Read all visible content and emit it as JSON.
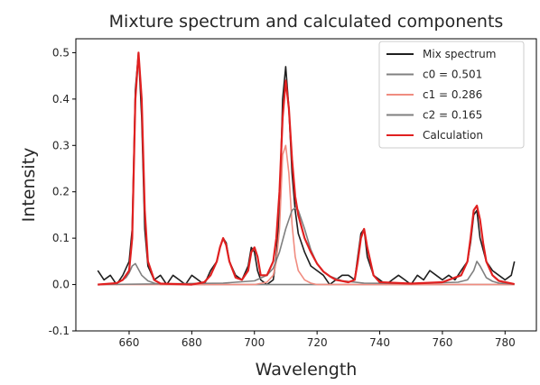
{
  "chart_data": {
    "type": "line",
    "title": "Mixture spectrum and calculated components",
    "xlabel": "Wavelength",
    "ylabel": "Intensity",
    "xlim": [
      643,
      790
    ],
    "ylim": [
      -0.1,
      0.53
    ],
    "xticks": [
      660,
      680,
      700,
      720,
      740,
      760,
      780
    ],
    "yticks": [
      -0.1,
      0.0,
      0.1,
      0.2,
      0.3,
      0.4,
      0.5
    ],
    "legend": {
      "position": "top-right"
    },
    "grid": false,
    "series": [
      {
        "name": "Mix spectrum",
        "color": "#1f1f1f",
        "x": [
          650,
          652,
          654,
          656,
          658,
          660,
          661,
          662,
          663,
          664,
          665,
          666,
          668,
          670,
          672,
          674,
          676,
          678,
          680,
          682,
          684,
          686,
          688,
          689,
          690,
          691,
          692,
          694,
          696,
          698,
          699,
          700,
          701,
          702,
          704,
          706,
          707,
          708,
          709,
          710,
          711,
          712,
          713,
          714,
          716,
          718,
          720,
          722,
          724,
          726,
          728,
          730,
          732,
          733,
          734,
          735,
          736,
          738,
          740,
          742,
          744,
          746,
          748,
          750,
          752,
          754,
          756,
          758,
          760,
          762,
          764,
          766,
          768,
          769,
          770,
          771,
          772,
          774,
          776,
          778,
          780,
          782,
          783
        ],
        "y": [
          0.03,
          0.01,
          0.02,
          0.0,
          0.02,
          0.05,
          0.12,
          0.42,
          0.5,
          0.36,
          0.12,
          0.04,
          0.01,
          0.02,
          0.0,
          0.02,
          0.01,
          0.0,
          0.02,
          0.01,
          0.0,
          0.03,
          0.05,
          0.08,
          0.1,
          0.09,
          0.05,
          0.02,
          0.01,
          0.04,
          0.08,
          0.07,
          0.03,
          0.01,
          0.0,
          0.01,
          0.06,
          0.16,
          0.4,
          0.47,
          0.38,
          0.24,
          0.16,
          0.11,
          0.07,
          0.04,
          0.03,
          0.02,
          0.0,
          0.01,
          0.02,
          0.02,
          0.01,
          0.06,
          0.11,
          0.12,
          0.06,
          0.02,
          0.01,
          0.0,
          0.01,
          0.02,
          0.01,
          0.0,
          0.02,
          0.01,
          0.03,
          0.02,
          0.01,
          0.02,
          0.01,
          0.03,
          0.05,
          0.09,
          0.15,
          0.16,
          0.1,
          0.05,
          0.03,
          0.02,
          0.01,
          0.02,
          0.05
        ]
      },
      {
        "name": "c0 = 0.501",
        "color": "#808080",
        "x": [
          650,
          656,
          658,
          659,
          660,
          661,
          662,
          664,
          666,
          668,
          670,
          672,
          674,
          676,
          680,
          690,
          700,
          710,
          720,
          740,
          760,
          783
        ],
        "y": [
          0.0,
          0.003,
          0.01,
          0.015,
          0.025,
          0.04,
          0.045,
          0.02,
          0.008,
          0.003,
          0.0,
          0.0,
          0.0,
          0.0,
          0.0,
          0.0,
          0.0,
          0.0,
          0.0,
          0.0,
          0.0,
          0.0
        ]
      },
      {
        "name": "c1 = 0.286",
        "color": "#f08c80",
        "x": [
          650,
          700,
          704,
          706,
          707,
          708,
          709,
          710,
          711,
          712,
          713,
          714,
          716,
          718,
          720,
          740,
          783
        ],
        "y": [
          0.0,
          0.0,
          0.005,
          0.02,
          0.05,
          0.12,
          0.28,
          0.3,
          0.24,
          0.13,
          0.06,
          0.03,
          0.01,
          0.003,
          0.0,
          0.0,
          0.0
        ]
      },
      {
        "name": "c2 = 0.165",
        "color": "#7f7f7f",
        "x": [
          650,
          690,
          700,
          704,
          706,
          708,
          710,
          712,
          713,
          714,
          716,
          718,
          720,
          722,
          724,
          728,
          735,
          750,
          765,
          768,
          770,
          771,
          772,
          774,
          776,
          778,
          783
        ],
        "y": [
          0.0,
          0.003,
          0.008,
          0.02,
          0.035,
          0.07,
          0.12,
          0.16,
          0.165,
          0.16,
          0.12,
          0.075,
          0.045,
          0.028,
          0.018,
          0.008,
          0.003,
          0.002,
          0.005,
          0.01,
          0.03,
          0.05,
          0.04,
          0.015,
          0.007,
          0.003,
          0.001
        ]
      },
      {
        "name": "Calculation",
        "color": "#e02020",
        "x": [
          650,
          656,
          658,
          660,
          661,
          662,
          663,
          664,
          665,
          666,
          668,
          670,
          680,
          684,
          686,
          688,
          689,
          690,
          691,
          692,
          694,
          696,
          698,
          699,
          700,
          701,
          702,
          704,
          706,
          707,
          708,
          709,
          710,
          711,
          712,
          713,
          714,
          716,
          718,
          720,
          722,
          724,
          726,
          730,
          732,
          733,
          734,
          735,
          736,
          738,
          740,
          750,
          760,
          766,
          768,
          769,
          770,
          771,
          772,
          773,
          774,
          776,
          778,
          783
        ],
        "y": [
          0.0,
          0.003,
          0.01,
          0.03,
          0.1,
          0.4,
          0.5,
          0.4,
          0.16,
          0.05,
          0.01,
          0.002,
          0.0,
          0.005,
          0.02,
          0.05,
          0.08,
          0.1,
          0.085,
          0.05,
          0.015,
          0.01,
          0.03,
          0.07,
          0.08,
          0.06,
          0.02,
          0.02,
          0.05,
          0.1,
          0.2,
          0.36,
          0.44,
          0.38,
          0.27,
          0.19,
          0.15,
          0.1,
          0.07,
          0.045,
          0.028,
          0.018,
          0.01,
          0.005,
          0.01,
          0.05,
          0.1,
          0.12,
          0.08,
          0.02,
          0.005,
          0.002,
          0.005,
          0.02,
          0.05,
          0.1,
          0.16,
          0.17,
          0.14,
          0.09,
          0.05,
          0.02,
          0.008,
          0.001
        ]
      }
    ]
  }
}
